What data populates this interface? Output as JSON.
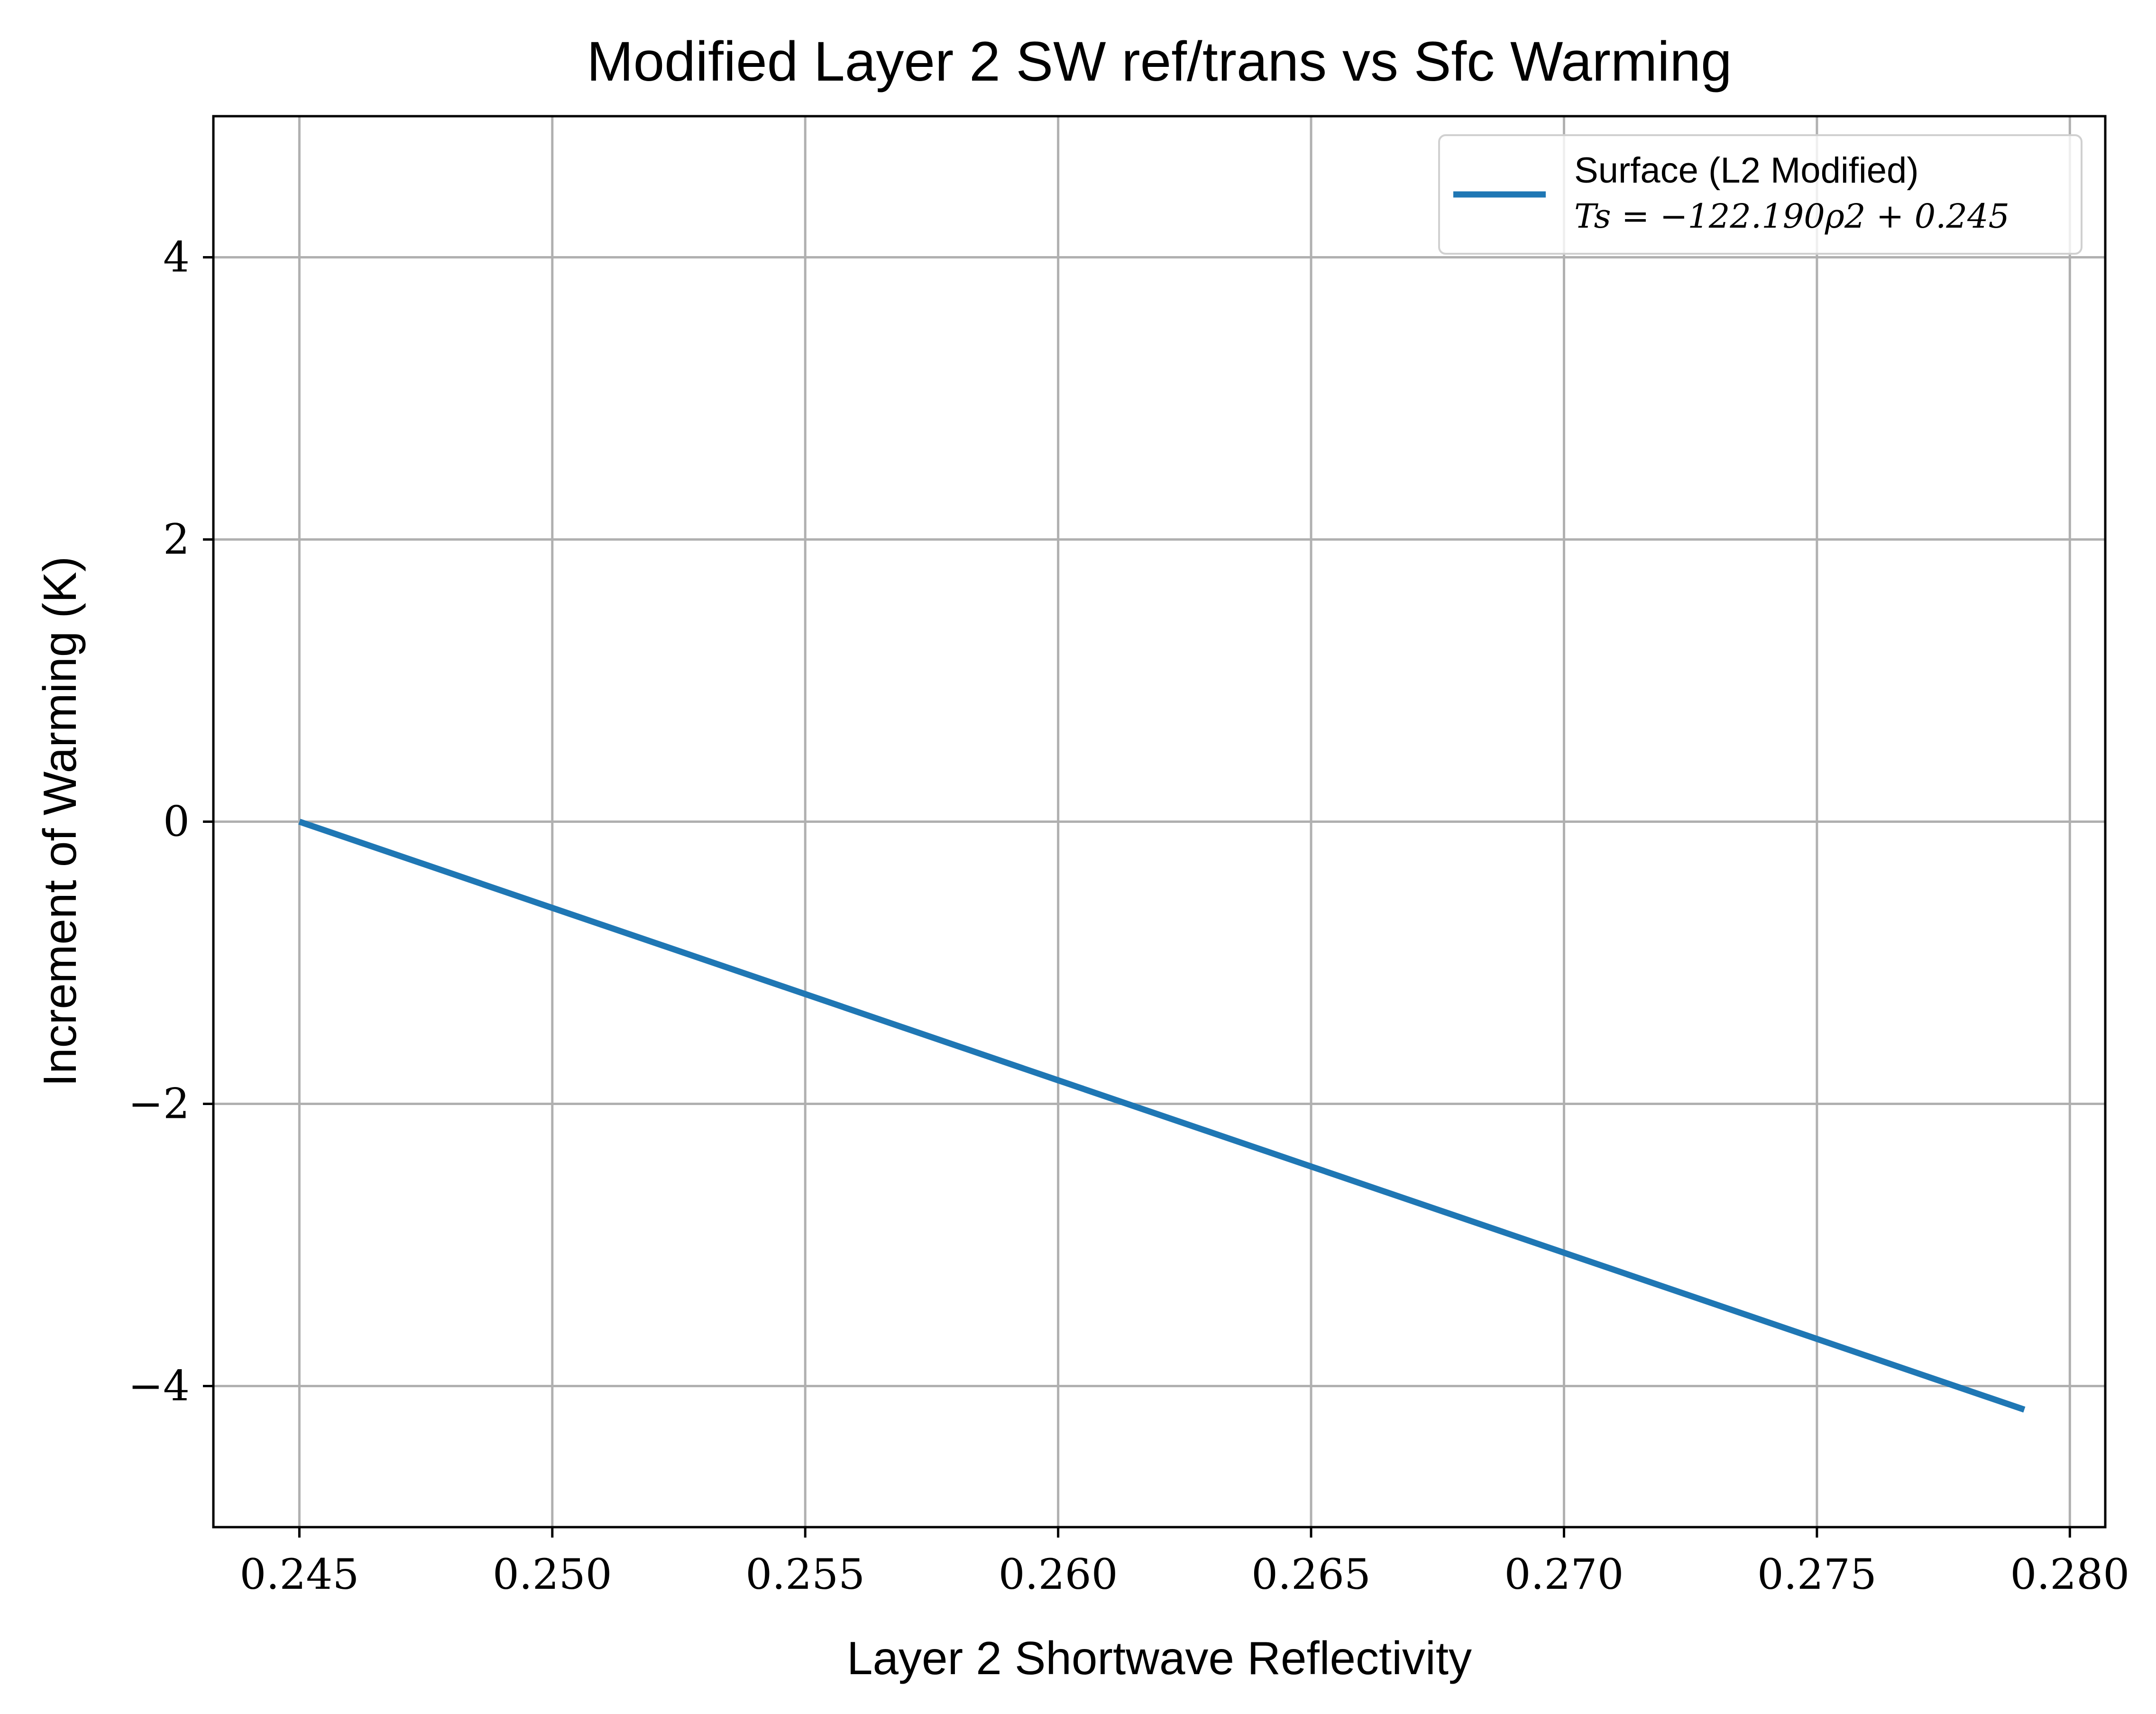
{
  "chart_data": {
    "type": "line",
    "title": "Modified Layer 2 SW ref/trans vs Sfc Warming",
    "xlabel": "Layer 2 Shortwave Reflectivity",
    "ylabel": "Increment of Warming (K)",
    "xlim": [
      0.2433,
      0.2807
    ],
    "ylim": [
      -5.0,
      5.0
    ],
    "xticks": [
      0.245,
      0.25,
      0.255,
      0.26,
      0.265,
      0.27,
      0.275,
      0.28
    ],
    "xtick_labels": [
      "0.245",
      "0.250",
      "0.255",
      "0.260",
      "0.265",
      "0.270",
      "0.275",
      "0.280"
    ],
    "yticks": [
      -4,
      -2,
      0,
      2,
      4
    ],
    "ytick_labels": [
      "−4",
      "−2",
      "0",
      "2",
      "4"
    ],
    "grid": true,
    "legend_position": "top-right",
    "series": [
      {
        "name": "Surface (L2 Modified)",
        "name_line2": "Ts = −122.190ρ2 + 0.245",
        "color": "#1f77b4",
        "x": [
          0.245,
          0.25,
          0.255,
          0.26,
          0.265,
          0.27,
          0.275,
          0.2791
        ],
        "y": [
          0.0,
          -0.611,
          -1.222,
          -1.833,
          -2.444,
          -3.055,
          -3.666,
          -4.167
        ]
      }
    ]
  }
}
